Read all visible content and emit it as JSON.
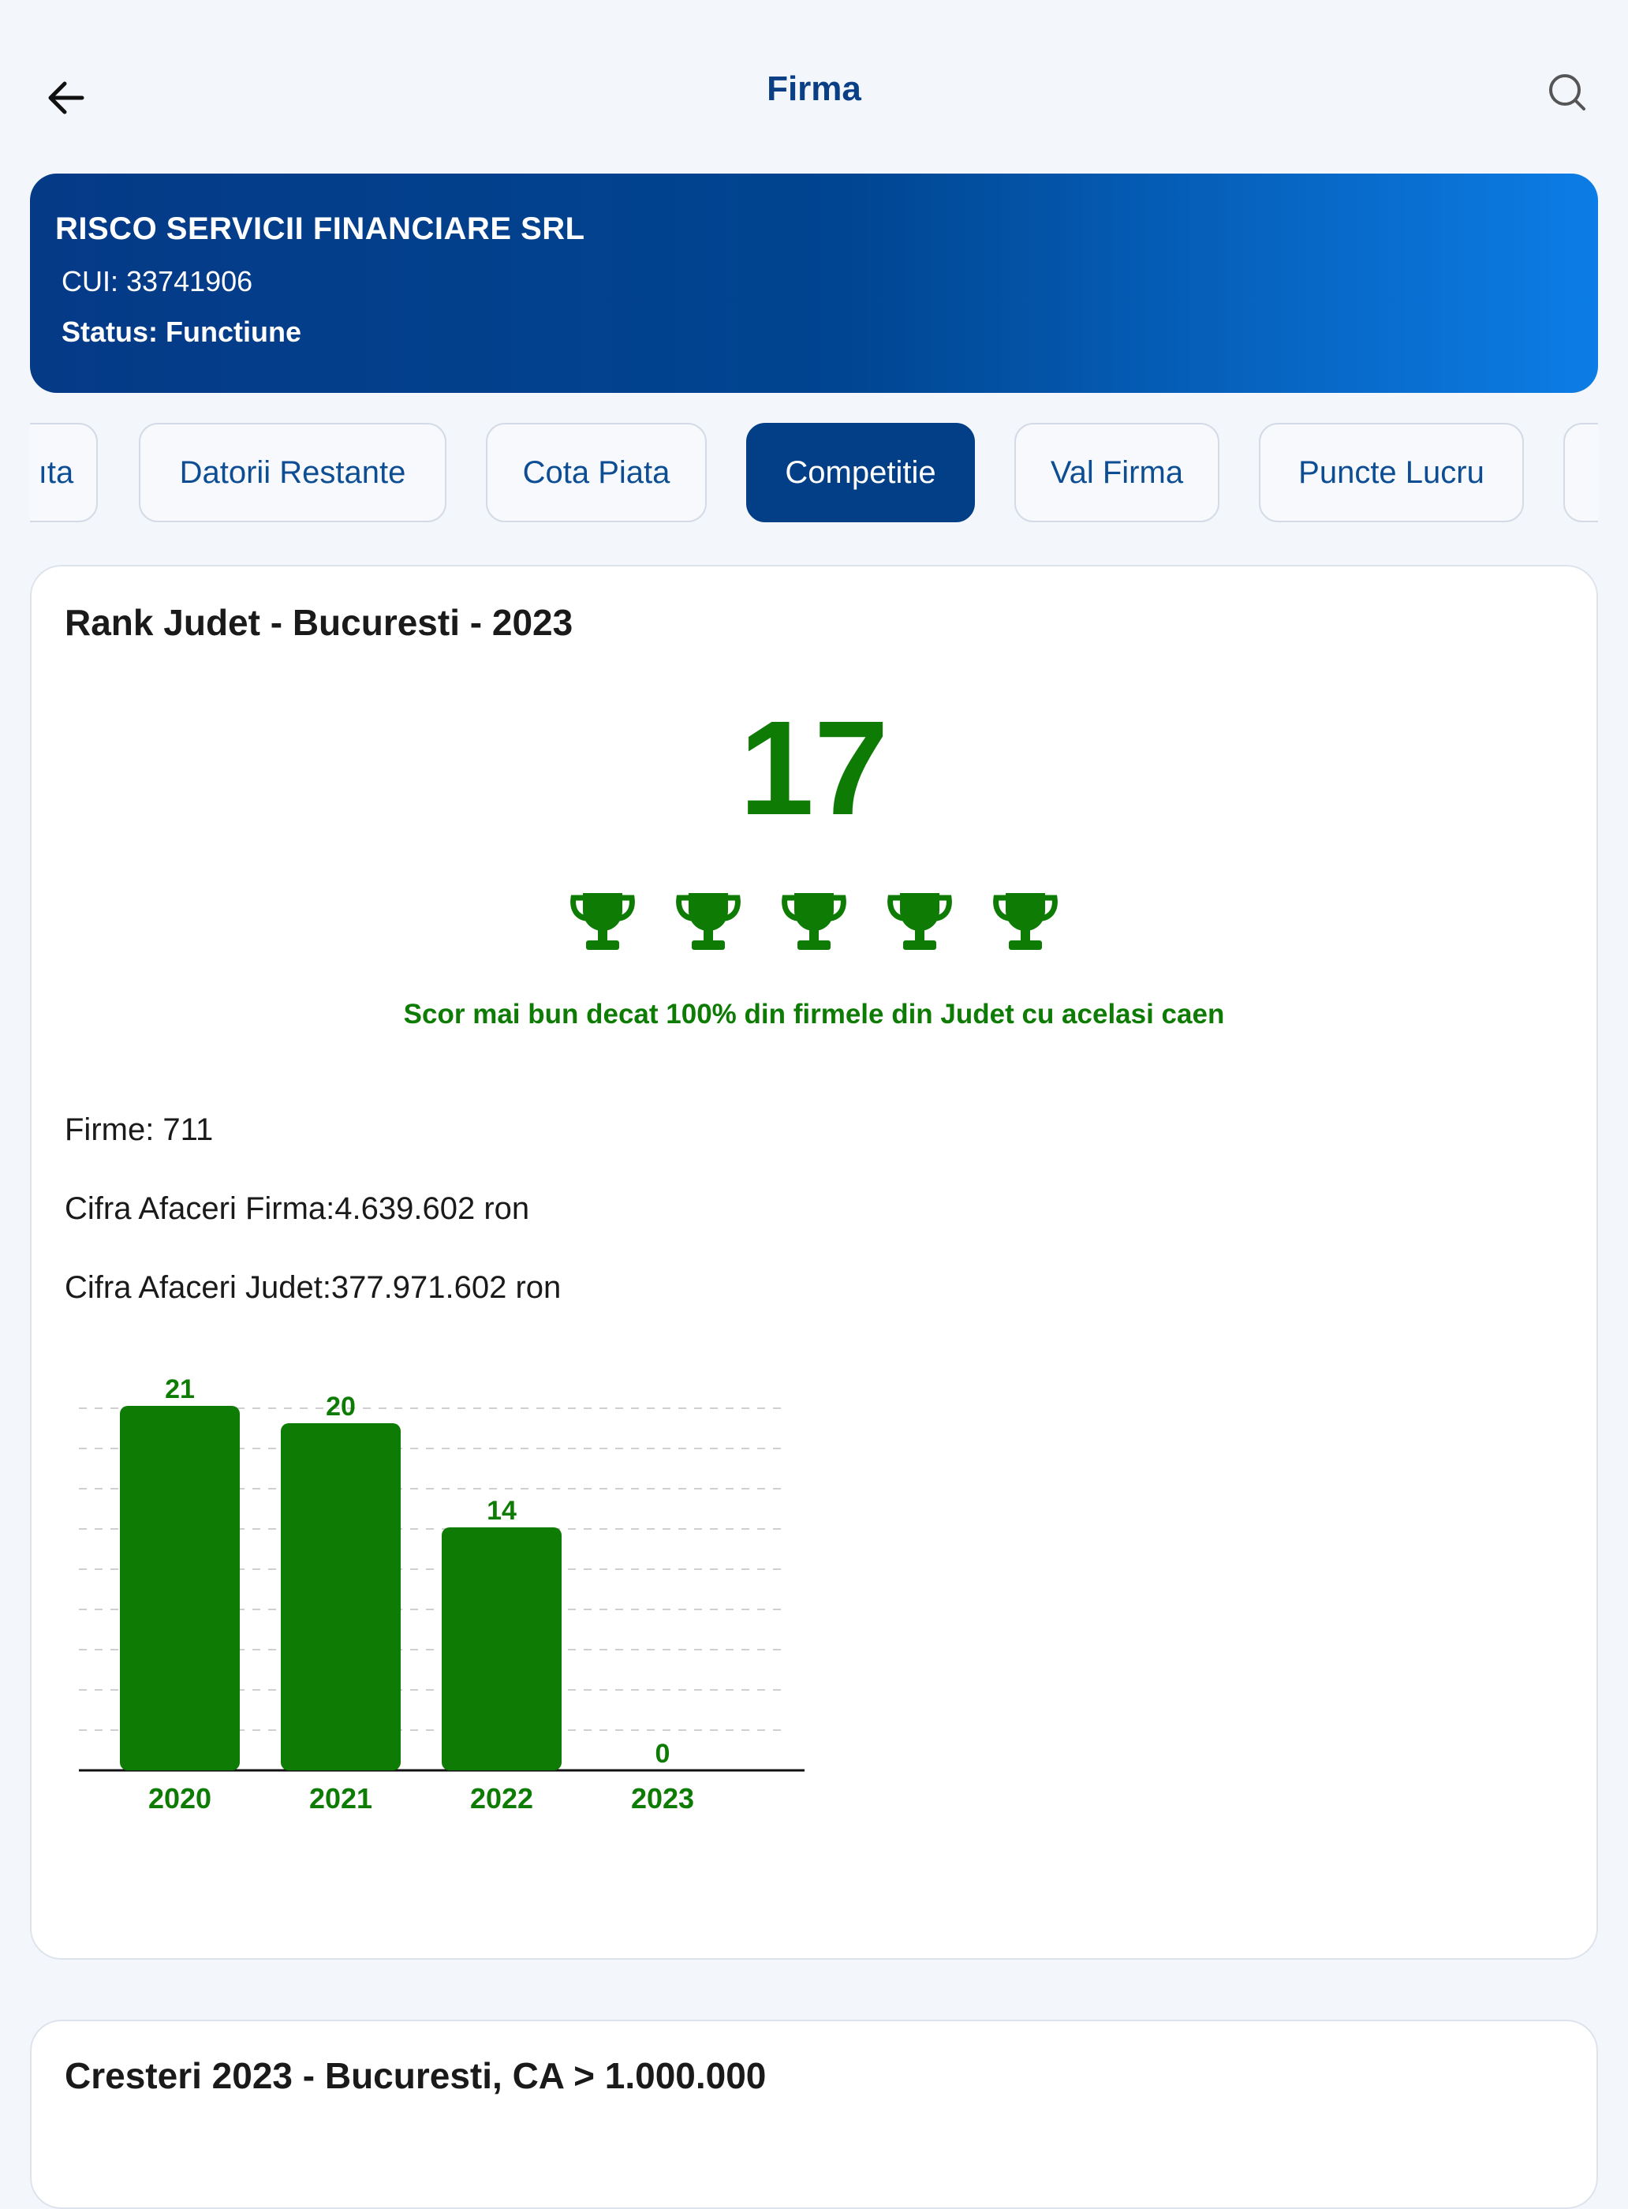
{
  "header": {
    "title": "Firma",
    "back_icon": "arrow-left-icon",
    "search_icon": "search-icon"
  },
  "company": {
    "name": "RISCO SERVICII FINANCIARE SRL",
    "cui": "CUI: 33741906",
    "status": "Status: Functiune"
  },
  "tabs": [
    {
      "label": "ıta",
      "active": false
    },
    {
      "label": "Datorii Restante",
      "active": false
    },
    {
      "label": "Cota Piata",
      "active": false
    },
    {
      "label": "Competitie",
      "active": true
    },
    {
      "label": "Val Firma",
      "active": false
    },
    {
      "label": "Puncte Lucru",
      "active": false
    },
    {
      "label": "",
      "active": false
    }
  ],
  "rank_card": {
    "title": "Rank Judet - Bucuresti - 2023",
    "rank": "17",
    "trophies": 5,
    "score_text": "Scor mai bun decat 100% din firmele din Judet cu acelasi caen",
    "firme": "Firme: 711",
    "cifra_firma": "Cifra Afaceri Firma:4.639.602 ron",
    "cifra_judet": "Cifra Afaceri Judet:377.971.602 ron"
  },
  "chart_data": {
    "type": "bar",
    "categories": [
      "2020",
      "2021",
      "2022",
      "2023"
    ],
    "values": [
      21,
      20,
      14,
      0
    ],
    "ylim": [
      0,
      22
    ],
    "grid": true,
    "bar_color": "#0e7c04"
  },
  "growth_card": {
    "title": "Cresteri 2023 - Bucuresti, CA > 1.000.000"
  },
  "colors": {
    "primary": "#033f87",
    "accent_green": "#0e7c04",
    "background": "#f3f7fc"
  }
}
